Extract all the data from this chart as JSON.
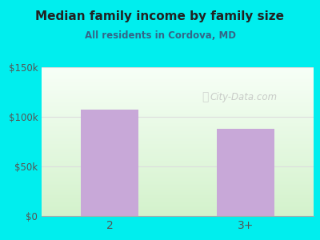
{
  "title": "Median family income by family size",
  "subtitle": "All residents in Cordova, MD",
  "categories": [
    "2",
    "3+"
  ],
  "values": [
    107000,
    88000
  ],
  "bar_color": "#c8a8d8",
  "bar_width": 0.42,
  "ylim": [
    0,
    150000
  ],
  "yticks": [
    0,
    50000,
    100000,
    150000
  ],
  "ytick_labels": [
    "$0",
    "$50k",
    "$100k",
    "$150k"
  ],
  "background_color": "#00EEEE",
  "plot_bg_top": "#f5fff5",
  "plot_bg_bottom": "#d8f0d0",
  "title_color": "#222222",
  "subtitle_color": "#336688",
  "tick_color": "#555555",
  "watermark": "City-Data.com",
  "watermark_color": "#bbbbbb",
  "grid_color": "#dddddd"
}
